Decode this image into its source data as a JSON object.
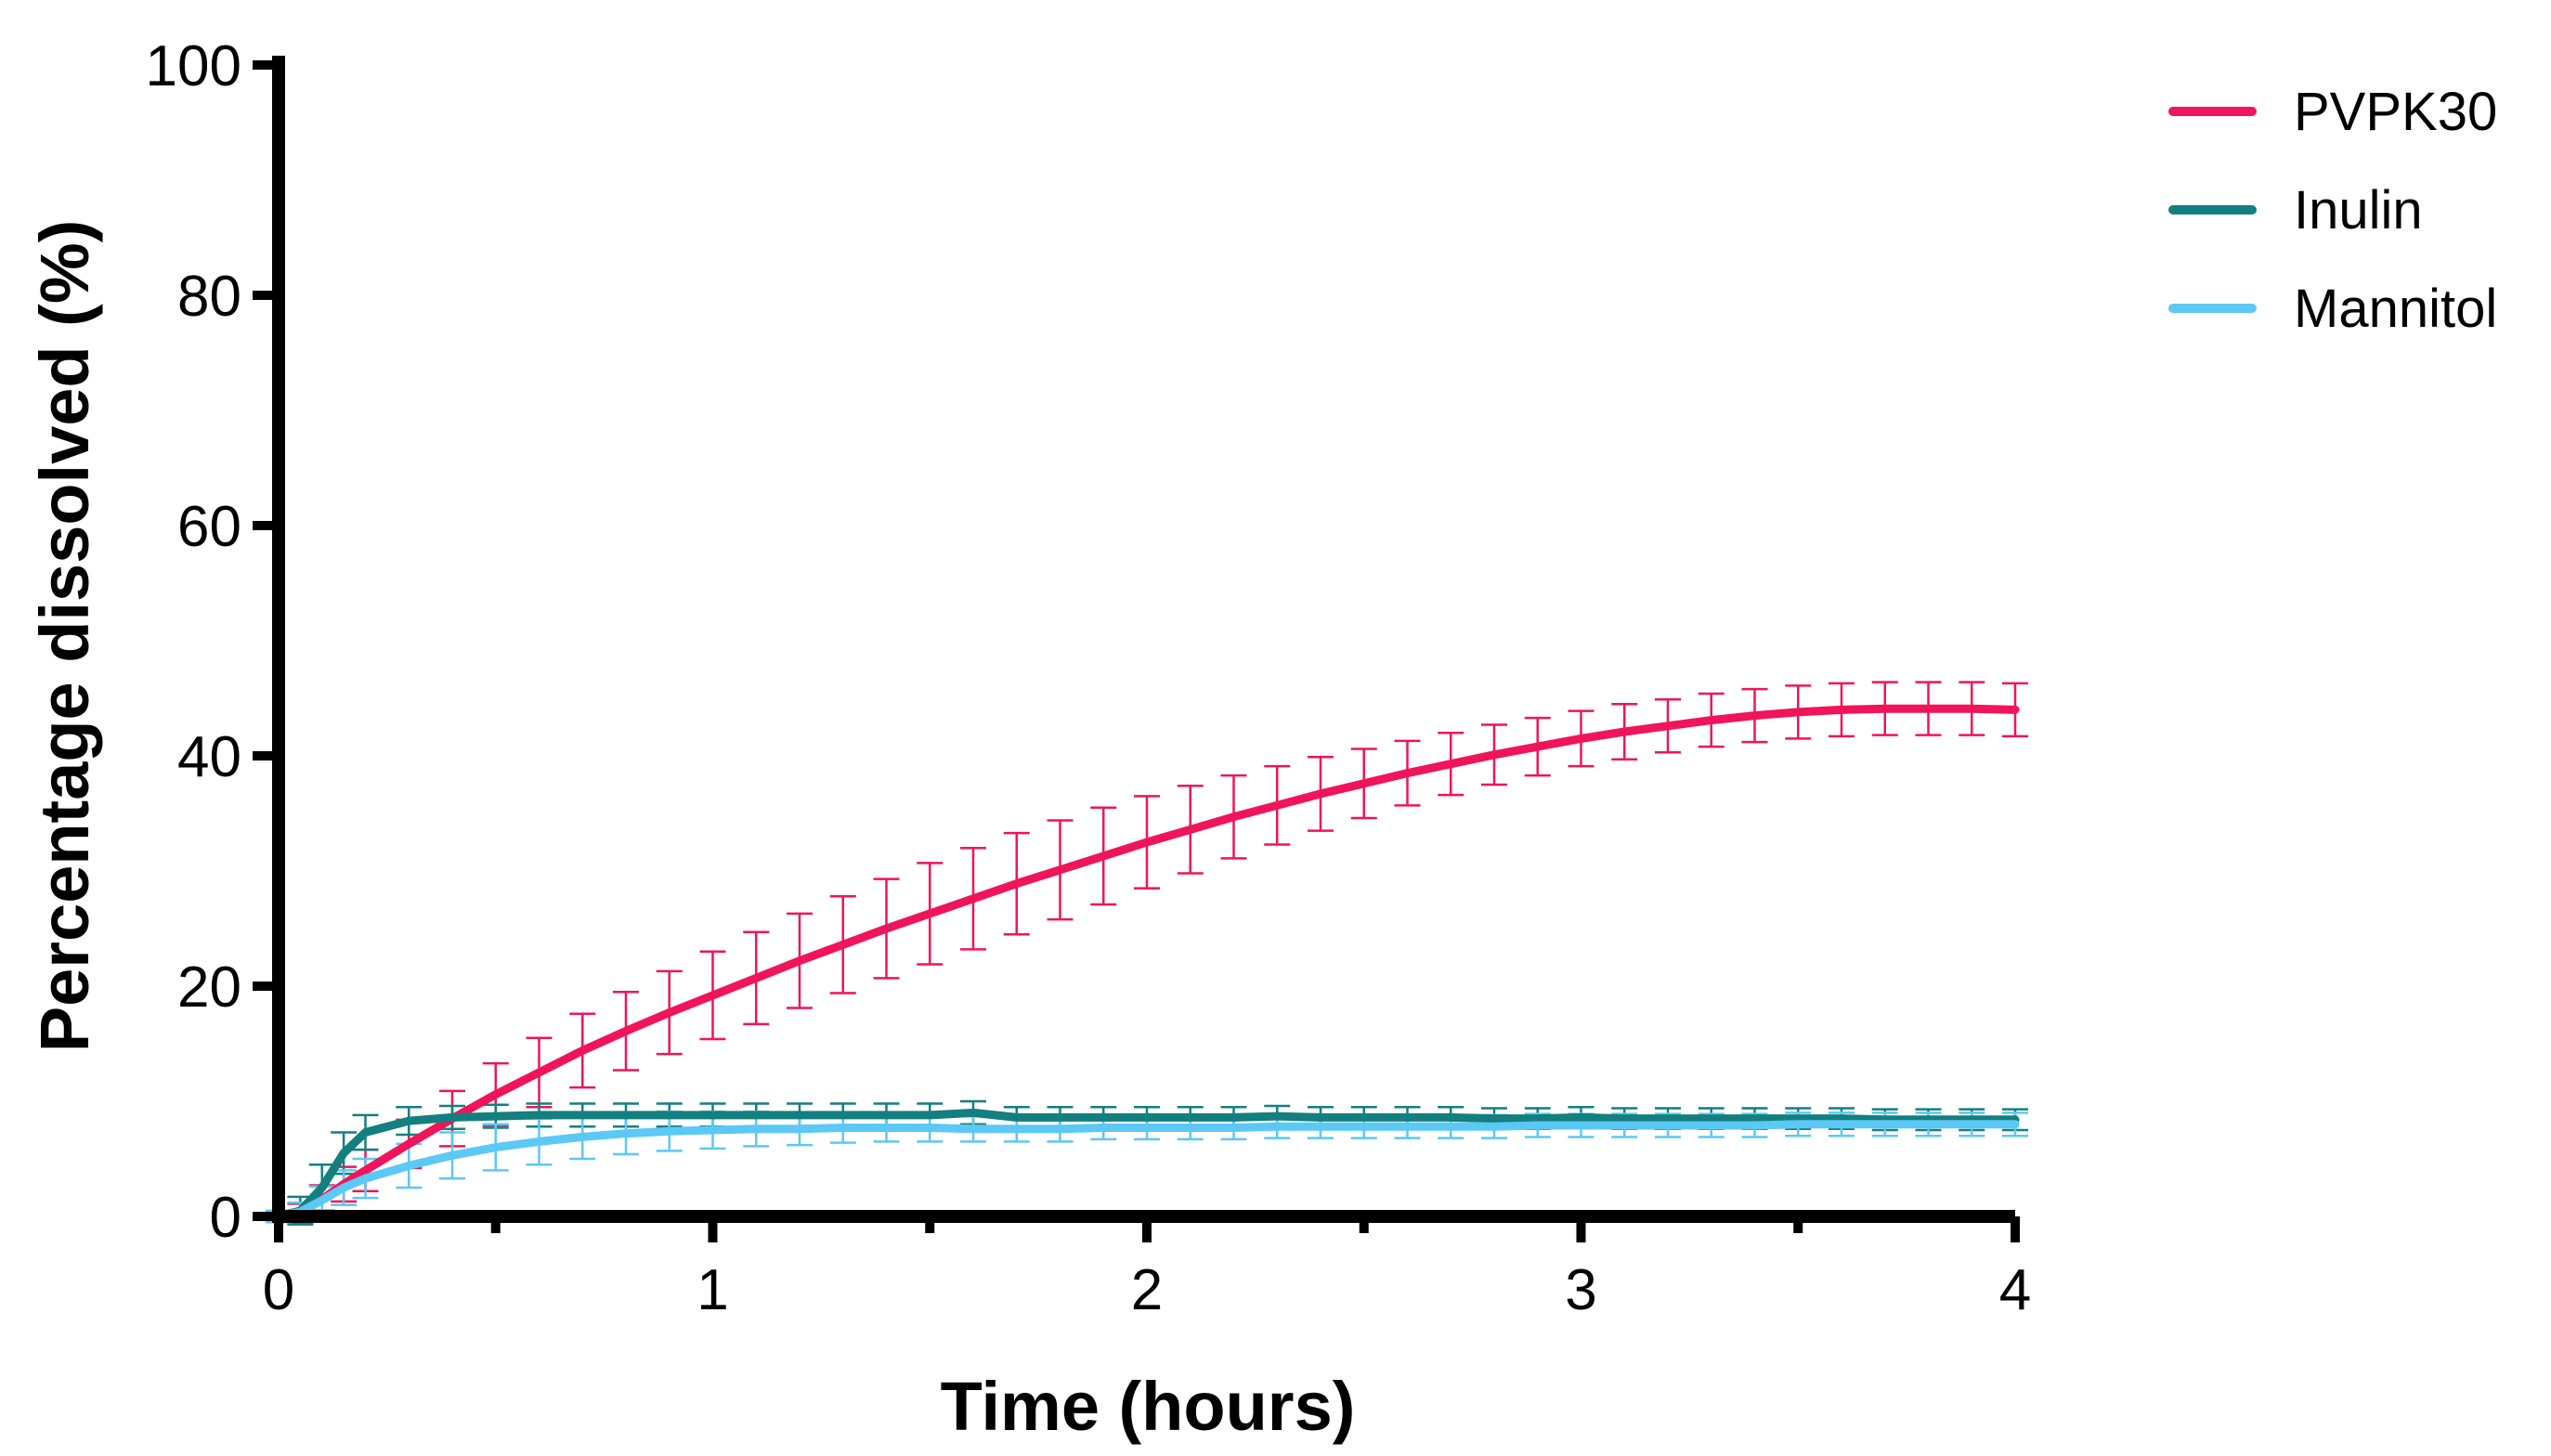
{
  "chart_data": {
    "type": "line",
    "title": "",
    "xlabel": "Time (hours)",
    "ylabel": "Percentage dissolved (%)",
    "xlim": [
      0,
      4
    ],
    "ylim": [
      0,
      100
    ],
    "xticks": [
      "0",
      "1",
      "2",
      "3",
      "4"
    ],
    "yticks": [
      "0",
      "20",
      "40",
      "60",
      "80",
      "100"
    ],
    "grid": false,
    "legend_position": "top-right",
    "error_bars": true,
    "x": [
      0,
      0.05,
      0.1,
      0.15,
      0.2,
      0.3,
      0.4,
      0.5,
      0.6,
      0.7,
      0.8,
      0.9,
      1.0,
      1.1,
      1.2,
      1.3,
      1.4,
      1.5,
      1.6,
      1.7,
      1.8,
      1.9,
      2.0,
      2.1,
      2.2,
      2.3,
      2.4,
      2.5,
      2.6,
      2.7,
      2.8,
      2.9,
      3.0,
      3.1,
      3.2,
      3.3,
      3.4,
      3.5,
      3.6,
      3.7,
      3.8,
      3.9,
      4.0
    ],
    "series": [
      {
        "name": "PVPK30",
        "color": "#f0145a",
        "values": [
          0,
          0.3,
          1.5,
          2.8,
          4.0,
          6.3,
          8.5,
          10.6,
          12.5,
          14.4,
          16.1,
          17.7,
          19.2,
          20.7,
          22.2,
          23.6,
          25.0,
          26.3,
          27.6,
          28.9,
          30.1,
          31.3,
          32.5,
          33.6,
          34.7,
          35.7,
          36.7,
          37.6,
          38.5,
          39.3,
          40.1,
          40.8,
          41.5,
          42.1,
          42.6,
          43.1,
          43.5,
          43.8,
          44.0,
          44.1,
          44.1,
          44.1,
          44.0
        ],
        "errors": [
          0.4,
          0.8,
          1.2,
          1.5,
          1.8,
          2.1,
          2.4,
          2.7,
          3.0,
          3.2,
          3.4,
          3.6,
          3.8,
          4.0,
          4.1,
          4.2,
          4.3,
          4.4,
          4.4,
          4.4,
          4.3,
          4.2,
          4.0,
          3.8,
          3.6,
          3.4,
          3.2,
          3.0,
          2.8,
          2.7,
          2.6,
          2.5,
          2.4,
          2.4,
          2.3,
          2.3,
          2.3,
          2.3,
          2.3,
          2.3,
          2.3,
          2.3,
          2.3
        ]
      },
      {
        "name": "Inulin",
        "color": "#137f7f",
        "values": [
          0,
          0.5,
          2.5,
          5.5,
          7.3,
          8.3,
          8.6,
          8.7,
          8.8,
          8.8,
          8.8,
          8.8,
          8.8,
          8.8,
          8.8,
          8.8,
          8.8,
          8.8,
          9.0,
          8.6,
          8.6,
          8.6,
          8.6,
          8.6,
          8.6,
          8.7,
          8.6,
          8.6,
          8.6,
          8.6,
          8.5,
          8.5,
          8.6,
          8.5,
          8.5,
          8.5,
          8.5,
          8.5,
          8.5,
          8.4,
          8.4,
          8.4,
          8.4
        ],
        "errors": [
          0.5,
          1.2,
          2.0,
          1.8,
          1.5,
          1.2,
          1.0,
          1.0,
          1.0,
          1.0,
          1.0,
          1.0,
          1.0,
          1.0,
          1.0,
          1.0,
          1.0,
          1.0,
          1.0,
          0.9,
          0.9,
          0.9,
          0.9,
          0.9,
          0.9,
          0.9,
          0.9,
          0.9,
          0.9,
          0.9,
          0.9,
          0.9,
          0.9,
          0.9,
          0.9,
          0.9,
          0.9,
          0.9,
          0.9,
          0.9,
          0.9,
          0.9,
          0.9
        ]
      },
      {
        "name": "Mannitol",
        "color": "#5cc8f5",
        "values": [
          0,
          0.4,
          1.4,
          2.5,
          3.3,
          4.4,
          5.3,
          6.0,
          6.5,
          6.9,
          7.2,
          7.4,
          7.5,
          7.6,
          7.6,
          7.7,
          7.7,
          7.7,
          7.6,
          7.6,
          7.6,
          7.7,
          7.7,
          7.7,
          7.7,
          7.8,
          7.8,
          7.8,
          7.8,
          7.8,
          7.8,
          7.9,
          7.9,
          7.9,
          7.9,
          7.9,
          7.9,
          8.0,
          8.0,
          8.0,
          8.0,
          8.0,
          8.0
        ],
        "errors": [
          0.5,
          0.8,
          1.2,
          1.5,
          1.7,
          1.9,
          2.0,
          2.0,
          2.0,
          1.9,
          1.8,
          1.7,
          1.6,
          1.5,
          1.4,
          1.3,
          1.2,
          1.2,
          1.1,
          1.1,
          1.1,
          1.0,
          1.0,
          1.0,
          1.0,
          1.0,
          1.0,
          1.0,
          1.0,
          1.0,
          1.0,
          1.0,
          1.0,
          1.0,
          1.0,
          1.0,
          1.0,
          1.0,
          1.0,
          1.0,
          1.0,
          1.0,
          1.0
        ]
      }
    ]
  }
}
